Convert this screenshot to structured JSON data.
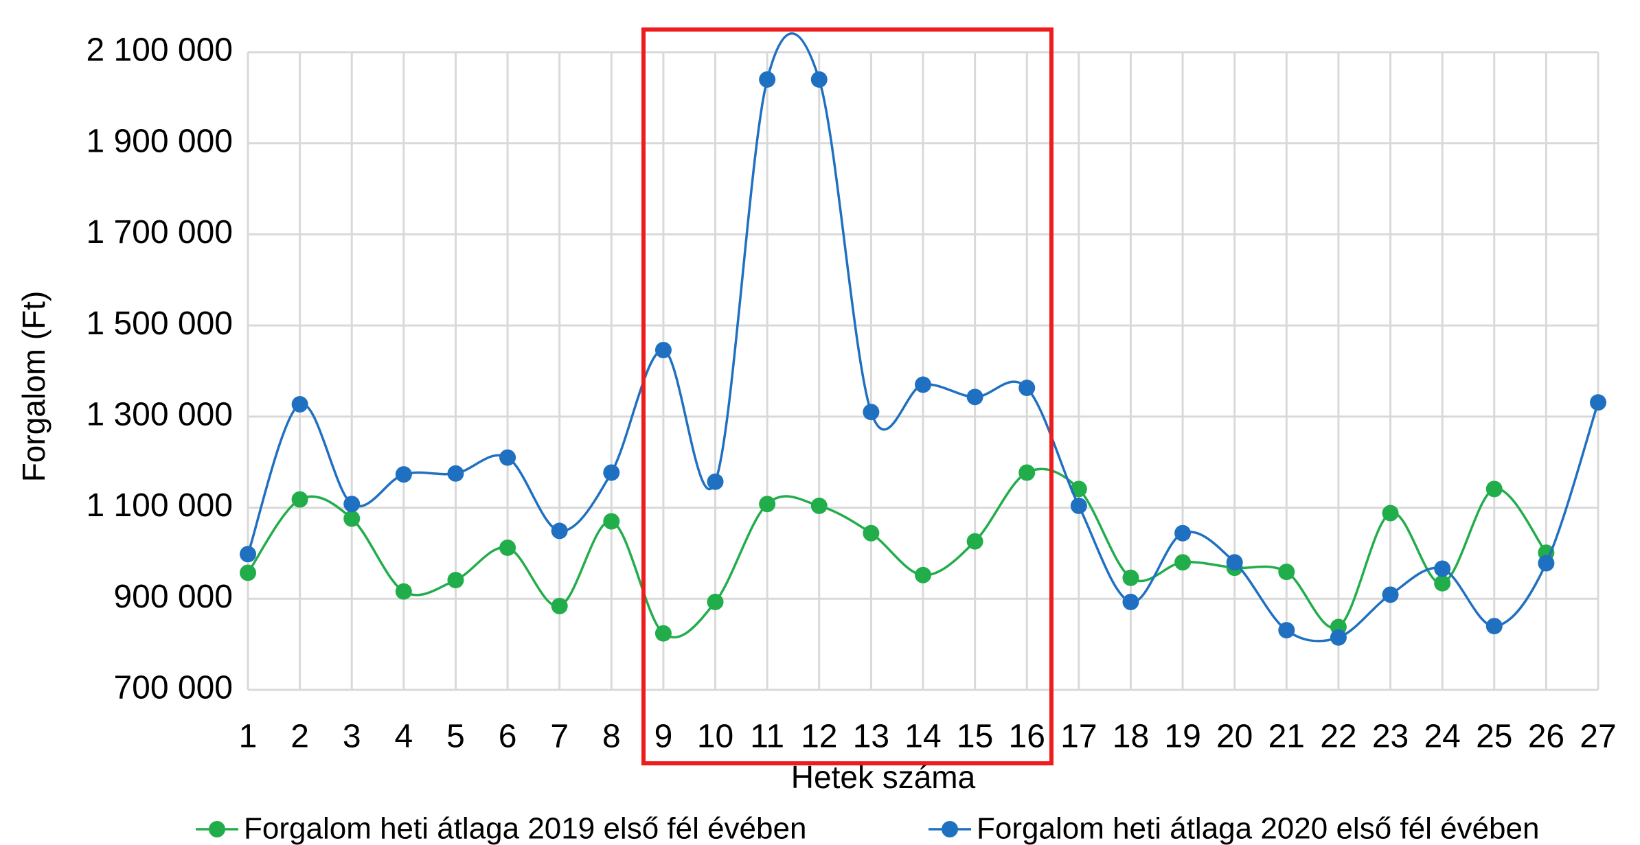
{
  "chart_data": {
    "type": "line",
    "x_label": "Hetek száma",
    "y_label": "Forgalom (Ft)",
    "categories": [
      "1",
      "2",
      "3",
      "4",
      "5",
      "6",
      "7",
      "8",
      "9",
      "10",
      "11",
      "12",
      "13",
      "14",
      "15",
      "16",
      "17",
      "18",
      "19",
      "20",
      "21",
      "22",
      "23",
      "24",
      "25",
      "26",
      "27"
    ],
    "series": [
      {
        "name": "Forgalom heti átlaga 2019 első fél évében",
        "color": "#22ad4b",
        "values": [
          957000,
          1118000,
          1076000,
          916000,
          941000,
          1012000,
          884000,
          1070000,
          824000,
          893000,
          1108000,
          1104000,
          1044000,
          952000,
          1026000,
          1177000,
          1141000,
          946000,
          980000,
          968000,
          959000,
          838000,
          1088000,
          934000,
          1141000,
          1001000,
          null
        ]
      },
      {
        "name": "Forgalom heti átlaga 2020 első fél évében",
        "color": "#1f70c1",
        "values": [
          998000,
          1327000,
          1108000,
          1173000,
          1175000,
          1210000,
          1049000,
          1177000,
          1446000,
          1157000,
          2040000,
          2040000,
          1310000,
          1370000,
          1343000,
          1363000,
          1104000,
          893000,
          1044000,
          980000,
          831000,
          815000,
          909000,
          966000,
          840000,
          978000,
          1331000
        ]
      }
    ],
    "ylim": [
      700000,
      2100000
    ],
    "yticks": [
      {
        "value": 700000,
        "label": "700 000"
      },
      {
        "value": 900000,
        "label": "900 000"
      },
      {
        "value": 1100000,
        "label": "1 100 000"
      },
      {
        "value": 1300000,
        "label": "1 300 000"
      },
      {
        "value": 1500000,
        "label": "1 500 000"
      },
      {
        "value": 1700000,
        "label": "1 700 000"
      },
      {
        "value": 1900000,
        "label": "1 900 000"
      },
      {
        "value": 2100000,
        "label": "2 100 000"
      }
    ],
    "grid": true,
    "smooth": true,
    "legend": "bottom"
  }
}
